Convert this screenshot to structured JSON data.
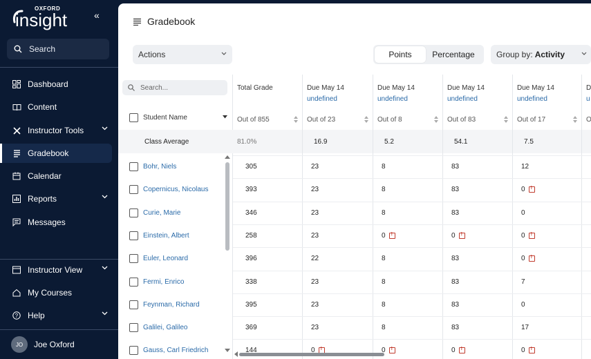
{
  "app": {
    "brand_small": "OXFORD",
    "brand_name": "insight"
  },
  "sidebar": {
    "search_label": "Search",
    "nav": [
      {
        "label": "Dashboard",
        "icon": "dashboard-icon"
      },
      {
        "label": "Content",
        "icon": "content-icon"
      },
      {
        "label": "Instructor Tools",
        "icon": "tools-icon"
      },
      {
        "label": "Gradebook",
        "icon": "gradebook-icon"
      },
      {
        "label": "Calendar",
        "icon": "calendar-icon"
      },
      {
        "label": "Reports",
        "icon": "reports-icon"
      },
      {
        "label": "Messages",
        "icon": "messages-icon"
      }
    ],
    "bottom": [
      {
        "label": "Instructor View",
        "icon": "instructor-view-icon"
      },
      {
        "label": "My Courses",
        "icon": "home-icon"
      },
      {
        "label": "Help",
        "icon": "help-icon"
      }
    ],
    "user": {
      "initials": "JO",
      "name": "Joe Oxford"
    }
  },
  "page": {
    "title": "Gradebook",
    "actions_label": "Actions",
    "toggle": {
      "points": "Points",
      "percentage": "Percentage"
    },
    "group_by": {
      "prefix": "Group by:",
      "value": "Activity"
    }
  },
  "students_panel": {
    "search_placeholder": "Search...",
    "header": "Student Name",
    "class_average_label": "Class Average",
    "students": [
      "Bohr, Niels",
      "Copernicus, Nicolaus",
      "Curie, Marie",
      "Einstein, Albert",
      "Euler, Leonard",
      "Fermi, Enrico",
      "Feynman, Richard",
      "Galilei, Galileo",
      "Gauss, Carl Friedrich"
    ]
  },
  "columns": [
    {
      "title": "Total Grade",
      "sub": "",
      "out_of": "Out of 855",
      "avg": "81.0%",
      "values": [
        "305",
        "393",
        "346",
        "258",
        "396",
        "338",
        "395",
        "369",
        "144"
      ]
    },
    {
      "title": "Due May 14",
      "sub": "undefined",
      "out_of": "Out of 23",
      "avg": "16.9",
      "values": [
        "23",
        "23",
        "23",
        "23",
        "22",
        "23",
        "23",
        "23",
        "0!"
      ]
    },
    {
      "title": "Due May 14",
      "sub": "undefined",
      "out_of": "Out of 8",
      "avg": "5.2",
      "values": [
        "8",
        "8",
        "8",
        "0!",
        "8",
        "8",
        "8",
        "8",
        "0!"
      ]
    },
    {
      "title": "Due May 14",
      "sub": "undefined",
      "out_of": "Out of 83",
      "avg": "54.1",
      "values": [
        "83",
        "83",
        "83",
        "0!",
        "83",
        "83",
        "83",
        "83",
        "0!"
      ]
    },
    {
      "title": "Due May 14",
      "sub": "undefined",
      "out_of": "Out of 17",
      "avg": "7.5",
      "values": [
        "12",
        "0!",
        "0",
        "0!",
        "0!",
        "7",
        "0",
        "17",
        "0!"
      ]
    },
    {
      "title": "D",
      "sub": "u",
      "out_of": "O",
      "avg": "",
      "values": []
    }
  ],
  "colors": {
    "sidebar_bg": "#0b1a33",
    "link": "#2a6aa8",
    "flag": "#c0392b"
  }
}
